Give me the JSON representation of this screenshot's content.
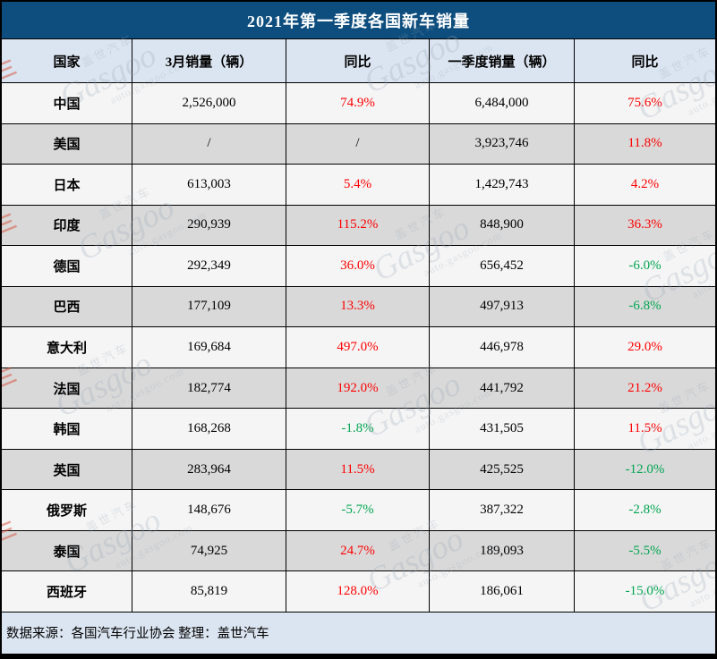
{
  "title": "2021年第一季度各国新车销量",
  "columns": [
    "国家",
    "3月销量（辆）",
    "同比",
    "一季度销量（辆）",
    "同比"
  ],
  "rows": [
    {
      "country": "中国",
      "march_sales": "2,526,000",
      "march_yoy": "74.9%",
      "march_yoy_color": "red",
      "q1_sales": "6,484,000",
      "q1_yoy": "75.6%",
      "q1_yoy_color": "red"
    },
    {
      "country": "美国",
      "march_sales": "/",
      "march_yoy": "/",
      "march_yoy_color": "black",
      "q1_sales": "3,923,746",
      "q1_yoy": "11.8%",
      "q1_yoy_color": "red"
    },
    {
      "country": "日本",
      "march_sales": "613,003",
      "march_yoy": "5.4%",
      "march_yoy_color": "red",
      "q1_sales": "1,429,743",
      "q1_yoy": "4.2%",
      "q1_yoy_color": "red"
    },
    {
      "country": "印度",
      "march_sales": "290,939",
      "march_yoy": "115.2%",
      "march_yoy_color": "red",
      "q1_sales": "848,900",
      "q1_yoy": "36.3%",
      "q1_yoy_color": "red"
    },
    {
      "country": "德国",
      "march_sales": "292,349",
      "march_yoy": "36.0%",
      "march_yoy_color": "red",
      "q1_sales": "656,452",
      "q1_yoy": "-6.0%",
      "q1_yoy_color": "green"
    },
    {
      "country": "巴西",
      "march_sales": "177,109",
      "march_yoy": "13.3%",
      "march_yoy_color": "red",
      "q1_sales": "497,913",
      "q1_yoy": "-6.8%",
      "q1_yoy_color": "green"
    },
    {
      "country": "意大利",
      "march_sales": "169,684",
      "march_yoy": "497.0%",
      "march_yoy_color": "red",
      "q1_sales": "446,978",
      "q1_yoy": "29.0%",
      "q1_yoy_color": "red"
    },
    {
      "country": "法国",
      "march_sales": "182,774",
      "march_yoy": "192.0%",
      "march_yoy_color": "red",
      "q1_sales": "441,792",
      "q1_yoy": "21.2%",
      "q1_yoy_color": "red"
    },
    {
      "country": "韩国",
      "march_sales": "168,268",
      "march_yoy": "-1.8%",
      "march_yoy_color": "green",
      "q1_sales": "431,505",
      "q1_yoy": "11.5%",
      "q1_yoy_color": "red"
    },
    {
      "country": "英国",
      "march_sales": "283,964",
      "march_yoy": "11.5%",
      "march_yoy_color": "red",
      "q1_sales": "425,525",
      "q1_yoy": "-12.0%",
      "q1_yoy_color": "green"
    },
    {
      "country": "俄罗斯",
      "march_sales": "148,676",
      "march_yoy": "-5.7%",
      "march_yoy_color": "green",
      "q1_sales": "387,322",
      "q1_yoy": "-2.8%",
      "q1_yoy_color": "green"
    },
    {
      "country": "泰国",
      "march_sales": "74,925",
      "march_yoy": "24.7%",
      "march_yoy_color": "red",
      "q1_sales": "189,093",
      "q1_yoy": "-5.5%",
      "q1_yoy_color": "green"
    },
    {
      "country": "西班牙",
      "march_sales": "85,819",
      "march_yoy": "128.0%",
      "march_yoy_color": "red",
      "q1_sales": "186,061",
      "q1_yoy": "-15.0%",
      "q1_yoy_color": "green"
    }
  ],
  "footer": "数据来源：各国汽车行业协会 整理：盖世汽车",
  "watermark": {
    "brand_cn": "盖世汽车",
    "brand_en": "Gasgoo",
    "domain": "auto.gasgoo.com"
  },
  "colors": {
    "title_bar": "#0e4e7e",
    "header_bg": "#dbe5f1",
    "footer_bg": "#dbe5f1",
    "row_light_bg": "#f5f5f5",
    "row_dark_bg": "#d9d9d9",
    "increase_text": "#fe0000",
    "decrease_text": "#00a651",
    "grid_line": "#000000"
  },
  "chart_data": {
    "type": "table",
    "title": "2021年第一季度各国新车销量",
    "columns": [
      "国家",
      "3月销量（辆）",
      "同比",
      "一季度销量（辆）",
      "同比"
    ],
    "rows": [
      [
        "中国",
        2526000,
        "74.9%",
        6484000,
        "75.6%"
      ],
      [
        "美国",
        null,
        null,
        3923746,
        "11.8%"
      ],
      [
        "日本",
        613003,
        "5.4%",
        1429743,
        "4.2%"
      ],
      [
        "印度",
        290939,
        "115.2%",
        848900,
        "36.3%"
      ],
      [
        "德国",
        292349,
        "36.0%",
        656452,
        "-6.0%"
      ],
      [
        "巴西",
        177109,
        "13.3%",
        497913,
        "-6.8%"
      ],
      [
        "意大利",
        169684,
        "497.0%",
        446978,
        "29.0%"
      ],
      [
        "法国",
        182774,
        "192.0%",
        441792,
        "21.2%"
      ],
      [
        "韩国",
        168268,
        "-1.8%",
        431505,
        "11.5%"
      ],
      [
        "英国",
        283964,
        "11.5%",
        425525,
        "-12.0%"
      ],
      [
        "俄罗斯",
        148676,
        "-5.7%",
        387322,
        "-2.8%"
      ],
      [
        "泰国",
        74925,
        "24.7%",
        189093,
        "-5.5%"
      ],
      [
        "西班牙",
        85819,
        "128.0%",
        186061,
        "-15.0%"
      ]
    ],
    "source_note": "数据来源：各国汽车行业协会 整理：盖世汽车"
  }
}
